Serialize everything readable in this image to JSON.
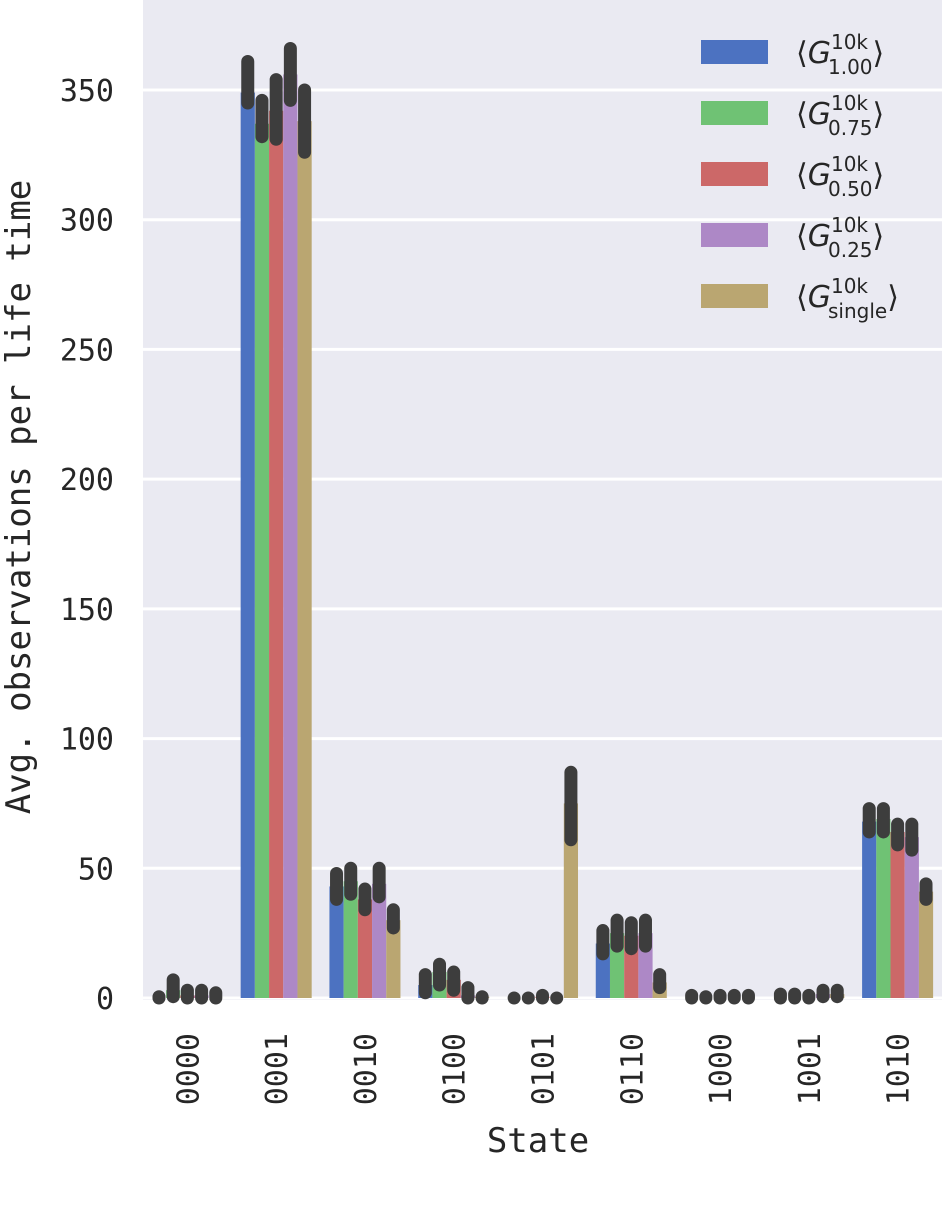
{
  "chart_data": {
    "type": "bar",
    "xlabel": "State",
    "ylabel": "Avg. observations per life time",
    "ylim": [
      0,
      375
    ],
    "yticks": [
      0,
      50,
      100,
      150,
      200,
      250,
      300,
      350
    ],
    "grid": true,
    "legend_position": "top-right",
    "categories": [
      "0000",
      "0001",
      "0010",
      "0100",
      "0101",
      "0110",
      "1000",
      "1001",
      "1010"
    ],
    "series": [
      {
        "name_main": "G",
        "name_sup": "10k",
        "name_sub": "1.00",
        "color": "#4c72c1",
        "values": [
          0,
          349,
          43,
          5,
          0,
          21,
          0,
          0,
          68
        ],
        "err_low": [
          0,
          345,
          38,
          2,
          0,
          17,
          0,
          0,
          64
        ],
        "err_high": [
          0.5,
          361,
          48,
          9,
          0,
          26,
          1,
          1.5,
          73
        ]
      },
      {
        "name_main": "G",
        "name_sup": "10k",
        "name_sub": "0.75",
        "color": "#6fc274",
        "values": [
          3,
          337,
          45,
          10,
          0,
          25,
          0,
          0,
          69
        ],
        "err_low": [
          0.5,
          332,
          40,
          5,
          0,
          20,
          0,
          0,
          64
        ],
        "err_high": [
          7,
          346,
          50,
          13,
          0,
          30,
          0.5,
          1.5,
          73
        ]
      },
      {
        "name_main": "G",
        "name_sup": "10k",
        "name_sub": "0.50",
        "color": "#cc6868",
        "values": [
          1,
          342,
          38,
          7,
          0.5,
          24,
          0,
          0,
          64
        ],
        "err_low": [
          0,
          331,
          34,
          3,
          0,
          19,
          0,
          0,
          59
        ],
        "err_high": [
          3,
          354,
          42,
          10,
          1,
          29,
          1,
          1,
          67
        ]
      },
      {
        "name_main": "G",
        "name_sup": "10k",
        "name_sub": "0.25",
        "color": "#ad88c6",
        "values": [
          1,
          356,
          44,
          1,
          0,
          25,
          0,
          1.5,
          62
        ],
        "err_low": [
          0,
          346,
          39,
          0,
          0,
          20,
          0,
          0.5,
          57
        ],
        "err_high": [
          3,
          366,
          50,
          4,
          0,
          30,
          1,
          3,
          67
        ]
      },
      {
        "name_main": "G",
        "name_sup": "10k",
        "name_sub": "single",
        "color": "#baa671",
        "values": [
          0,
          338,
          30,
          0.5,
          75,
          6,
          0,
          1.5,
          41
        ],
        "err_low": [
          0,
          326,
          27,
          0,
          61,
          4,
          0,
          0.5,
          38
        ],
        "err_high": [
          2,
          350,
          34,
          0.5,
          87,
          9,
          1,
          3,
          44
        ]
      }
    ]
  }
}
